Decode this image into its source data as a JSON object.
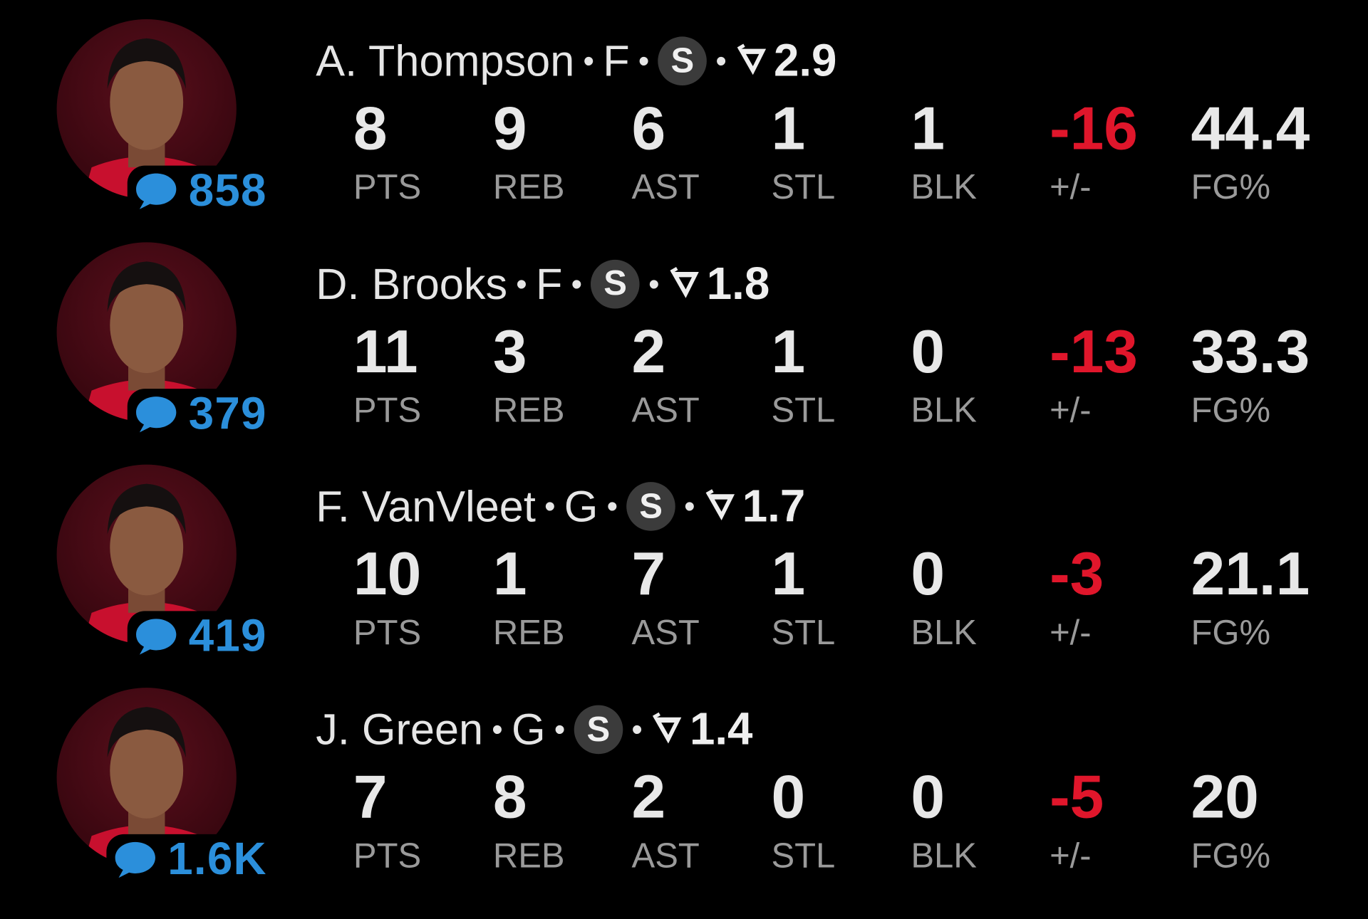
{
  "colors": {
    "accent_blue": "#2b8fdb",
    "negative_red": "#e0162b",
    "text": "#e8e8e8",
    "label": "#9a9a9a",
    "background": "#000000"
  },
  "stat_labels": [
    "PTS",
    "REB",
    "AST",
    "STL",
    "BLK",
    "+/-",
    "FG%"
  ],
  "players": [
    {
      "name": "A. Thompson",
      "position": "F",
      "starter_badge": "S",
      "rating": "2.9",
      "comments": "858",
      "stats": [
        "8",
        "9",
        "6",
        "1",
        "1",
        "-16",
        "44.4"
      ]
    },
    {
      "name": "D. Brooks",
      "position": "F",
      "starter_badge": "S",
      "rating": "1.8",
      "comments": "379",
      "stats": [
        "11",
        "3",
        "2",
        "1",
        "0",
        "-13",
        "33.3"
      ]
    },
    {
      "name": "F. VanVleet",
      "position": "G",
      "starter_badge": "S",
      "rating": "1.7",
      "comments": "419",
      "stats": [
        "10",
        "1",
        "7",
        "1",
        "0",
        "-3",
        "21.1"
      ]
    },
    {
      "name": "J. Green",
      "position": "G",
      "starter_badge": "S",
      "rating": "1.4",
      "comments": "1.6K",
      "stats": [
        "7",
        "8",
        "2",
        "0",
        "0",
        "-5",
        "20"
      ]
    }
  ]
}
